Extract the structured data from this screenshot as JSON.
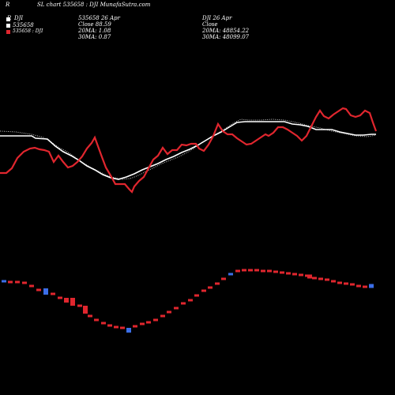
{
  "header": {
    "left_char": "R",
    "title": "SL chart 535658 : DJI MunafaSutra.com"
  },
  "legend": {
    "line1_prefix": "R",
    "line1_text": "DJI",
    "line2_text": "535658",
    "line3_text": "535658 : DJI",
    "primary_color": "#ffffff",
    "secondary_color": "#e0262e"
  },
  "info_left": {
    "line1": "535658 26 Apr",
    "line2": "Close 88.59",
    "line3": "20MA: 1.08",
    "line4": "30MA: 0.87"
  },
  "info_right": {
    "line1": "DJI 26 Apr",
    "line2": "Close",
    "line3": "20MA: 48854.22",
    "line4": "30MA: 48099.07"
  },
  "chart_data": {
    "type": "line",
    "series": [],
    "volume_bars": {
      "colors": {
        "up": "#3b6ee8",
        "down": "#e0262e"
      }
    }
  }
}
